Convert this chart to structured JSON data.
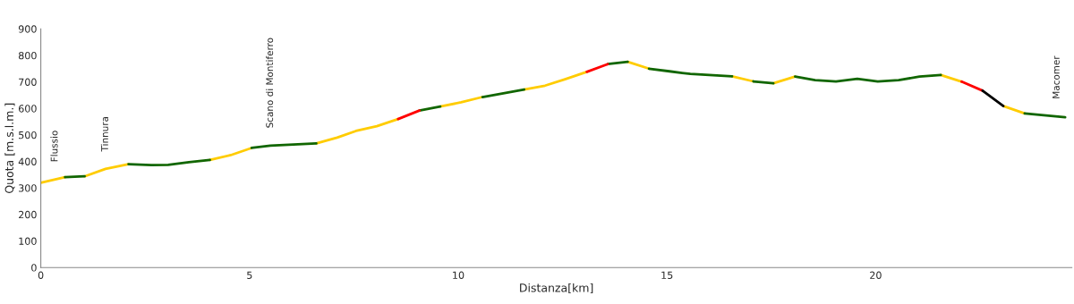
{
  "chart_data": {
    "type": "line",
    "xlabel": "Distanza[km]",
    "ylabel": "Quota [m.s.l.m.]",
    "xlim": [
      0,
      24.7
    ],
    "xticks": [
      0,
      5,
      10,
      15,
      20
    ],
    "ylim": [
      0,
      900
    ],
    "yticks": [
      0,
      100,
      200,
      300,
      400,
      500,
      600,
      700,
      800,
      900
    ],
    "grid": false,
    "legend": false,
    "marker": "none",
    "line_style": "solid",
    "series": [
      {
        "color": "#ffcc00",
        "x": [
          0,
          0.58,
          null,
          1.05,
          1.55,
          2.1,
          null,
          4.05,
          4.55,
          5.05,
          null,
          6.6,
          7.1,
          7.55,
          8.05,
          8.56,
          null,
          9.57,
          10.07,
          10.58,
          null,
          11.58,
          12.08,
          12.56,
          13.08,
          null,
          14.06,
          14.57,
          null,
          16.56,
          17.07,
          null,
          17.55,
          18.07,
          null,
          21.56,
          22.06,
          null,
          23.06,
          23.57
        ],
        "values": [
          320,
          341,
          null,
          344,
          372,
          390,
          null,
          406,
          424,
          451,
          null,
          468,
          490,
          515,
          533,
          560,
          null,
          607,
          623,
          643,
          null,
          671,
          686,
          710,
          738,
          null,
          776,
          750,
          null,
          721,
          702,
          null,
          695,
          720,
          null,
          726,
          701,
          null,
          609,
          581
        ]
      },
      {
        "color": "#116600",
        "x": [
          0.58,
          1.05,
          null,
          2.1,
          2.65,
          3.05,
          3.55,
          4.05,
          null,
          5.05,
          5.5,
          6.6,
          null,
          9.07,
          9.57,
          null,
          10.58,
          11.58,
          null,
          13.58,
          14.06,
          null,
          14.57,
          15.06,
          15.56,
          16.56,
          null,
          17.07,
          17.55,
          null,
          18.07,
          18.55,
          19.05,
          19.56,
          20.05,
          20.55,
          21.05,
          21.56,
          null,
          23.57,
          24.54
        ],
        "values": [
          341,
          344,
          null,
          390,
          386,
          387,
          397,
          406,
          null,
          451,
          460,
          468,
          null,
          592,
          607,
          null,
          643,
          671,
          null,
          767,
          776,
          null,
          750,
          740,
          730,
          721,
          null,
          702,
          695,
          null,
          720,
          707,
          702,
          712,
          702,
          707,
          720,
          726,
          null,
          581,
          567
        ]
      },
      {
        "color": "#ff0000",
        "x": [
          8.56,
          9.07,
          null,
          13.08,
          13.58,
          null,
          22.06,
          22.56
        ],
        "values": [
          560,
          592,
          null,
          738,
          767,
          null,
          701,
          667
        ]
      },
      {
        "color": "#000000",
        "x": [
          22.56,
          23.06
        ],
        "values": [
          667,
          609
        ]
      }
    ],
    "annotations": [
      {
        "text": "Flussio",
        "x": 0.34,
        "y": 332
      },
      {
        "text": "Tinnura",
        "x": 1.55,
        "y": 372
      },
      {
        "text": "Scano di Montiferro",
        "x": 5.5,
        "y": 460
      },
      {
        "text": "Macomer",
        "x": 24.34,
        "y": 570
      }
    ]
  }
}
